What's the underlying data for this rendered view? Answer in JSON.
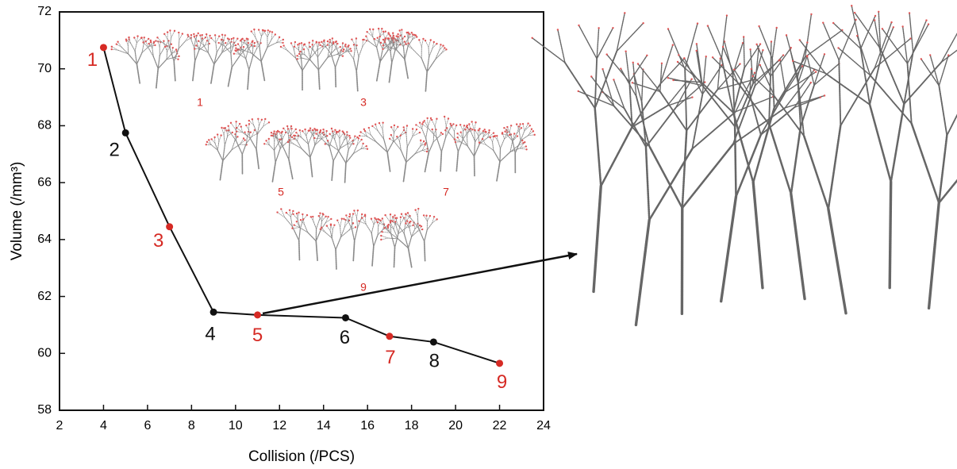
{
  "chart_data": {
    "type": "line",
    "xlabel": "Collision (/PCS)",
    "ylabel": "Volume (/mm³)",
    "x": [
      4,
      5,
      7,
      9,
      11,
      15,
      17,
      19,
      22
    ],
    "series": [
      {
        "color": "#111111",
        "values": [
          70.75,
          67.75,
          64.45,
          61.45,
          61.35,
          61.25,
          60.6,
          60.4,
          59.65
        ]
      }
    ],
    "point_labels": [
      "1",
      "2",
      "3",
      "4",
      "5",
      "6",
      "7",
      "8",
      "9"
    ],
    "point_colors": [
      "#d62a24",
      "#111111",
      "#d62a24",
      "#111111",
      "#d62a24",
      "#111111",
      "#d62a24",
      "#111111",
      "#d62a24"
    ],
    "inset_labels": [
      "1",
      "3",
      "5",
      "7",
      "9"
    ],
    "inset_label_color": "#d62a24",
    "xlim": [
      2,
      24
    ],
    "xticks": [
      2,
      4,
      6,
      8,
      10,
      12,
      14,
      16,
      18,
      20,
      22,
      24
    ],
    "ylim": [
      58,
      72
    ],
    "yticks": [
      58,
      60,
      62,
      64,
      66,
      68,
      70,
      72
    ]
  }
}
